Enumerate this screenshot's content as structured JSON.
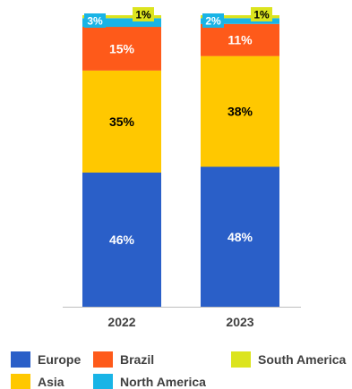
{
  "chart_data": {
    "type": "bar",
    "stacked": true,
    "categories": [
      "2022",
      "2023"
    ],
    "series": [
      {
        "name": "Europe",
        "values": [
          46,
          48
        ],
        "labels": [
          "46%",
          "48%"
        ],
        "color": "#2a5fc8",
        "label_color": "#ffffff"
      },
      {
        "name": "Asia",
        "values": [
          35,
          38
        ],
        "labels": [
          "35%",
          "38%"
        ],
        "color": "#ffc800",
        "label_color": "#000000"
      },
      {
        "name": "Brazil",
        "values": [
          15,
          11
        ],
        "labels": [
          "15%",
          "11%"
        ],
        "color": "#fe5a1a",
        "label_color": "#ffffff"
      },
      {
        "name": "North America",
        "values": [
          3,
          2
        ],
        "labels": [
          "3%",
          "2%"
        ],
        "color": "#19b4e6",
        "label_color": "#ffffff"
      },
      {
        "name": "South America",
        "values": [
          1,
          1
        ],
        "labels": [
          "1%",
          "1%"
        ],
        "color": "#dce41e",
        "label_color": "#000000"
      }
    ],
    "legend_order": [
      "Europe",
      "Brazil",
      "South America",
      "Asia",
      "North America"
    ],
    "legend_position": "bottom",
    "ylim": [
      0,
      100
    ],
    "grid": false,
    "title": "",
    "xlabel": "",
    "ylabel": ""
  }
}
